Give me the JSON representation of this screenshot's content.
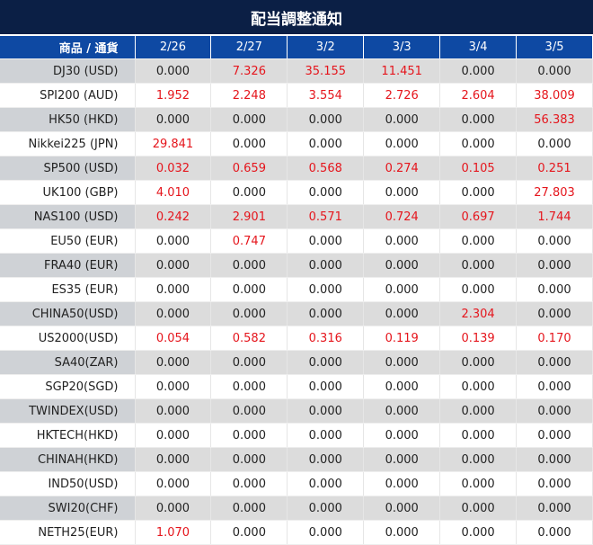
{
  "title": "配当調整通知",
  "header": {
    "product_label": "商品 / 通貨",
    "dates": [
      "2/26",
      "2/27",
      "3/2",
      "3/3",
      "3/4",
      "3/5"
    ]
  },
  "colors": {
    "title_bg": "#0b1f45",
    "header_bg": "#0e49a3",
    "positive_value": "#e5151c",
    "zero_value": "#222222"
  },
  "rows": [
    {
      "name": "DJ30 (USD)",
      "values": [
        "0.000",
        "7.326",
        "35.155",
        "11.451",
        "0.000",
        "0.000"
      ]
    },
    {
      "name": "SPI200 (AUD)",
      "values": [
        "1.952",
        "2.248",
        "3.554",
        "2.726",
        "2.604",
        "38.009"
      ]
    },
    {
      "name": "HK50 (HKD)",
      "values": [
        "0.000",
        "0.000",
        "0.000",
        "0.000",
        "0.000",
        "56.383"
      ]
    },
    {
      "name": "Nikkei225 (JPN)",
      "values": [
        "29.841",
        "0.000",
        "0.000",
        "0.000",
        "0.000",
        "0.000"
      ]
    },
    {
      "name": "SP500 (USD)",
      "values": [
        "0.032",
        "0.659",
        "0.568",
        "0.274",
        "0.105",
        "0.251"
      ]
    },
    {
      "name": "UK100 (GBP)",
      "values": [
        "4.010",
        "0.000",
        "0.000",
        "0.000",
        "0.000",
        "27.803"
      ]
    },
    {
      "name": "NAS100 (USD)",
      "values": [
        "0.242",
        "2.901",
        "0.571",
        "0.724",
        "0.697",
        "1.744"
      ]
    },
    {
      "name": "EU50 (EUR)",
      "values": [
        "0.000",
        "0.747",
        "0.000",
        "0.000",
        "0.000",
        "0.000"
      ]
    },
    {
      "name": "FRA40 (EUR)",
      "values": [
        "0.000",
        "0.000",
        "0.000",
        "0.000",
        "0.000",
        "0.000"
      ]
    },
    {
      "name": "ES35 (EUR)",
      "values": [
        "0.000",
        "0.000",
        "0.000",
        "0.000",
        "0.000",
        "0.000"
      ]
    },
    {
      "name": "CHINA50(USD)",
      "values": [
        "0.000",
        "0.000",
        "0.000",
        "0.000",
        "2.304",
        "0.000"
      ]
    },
    {
      "name": "US2000(USD)",
      "values": [
        "0.054",
        "0.582",
        "0.316",
        "0.119",
        "0.139",
        "0.170"
      ]
    },
    {
      "name": "SA40(ZAR)",
      "values": [
        "0.000",
        "0.000",
        "0.000",
        "0.000",
        "0.000",
        "0.000"
      ]
    },
    {
      "name": "SGP20(SGD)",
      "values": [
        "0.000",
        "0.000",
        "0.000",
        "0.000",
        "0.000",
        "0.000"
      ]
    },
    {
      "name": "TWINDEX(USD)",
      "values": [
        "0.000",
        "0.000",
        "0.000",
        "0.000",
        "0.000",
        "0.000"
      ]
    },
    {
      "name": "HKTECH(HKD)",
      "values": [
        "0.000",
        "0.000",
        "0.000",
        "0.000",
        "0.000",
        "0.000"
      ]
    },
    {
      "name": "CHINAH(HKD)",
      "values": [
        "0.000",
        "0.000",
        "0.000",
        "0.000",
        "0.000",
        "0.000"
      ]
    },
    {
      "name": "IND50(USD)",
      "values": [
        "0.000",
        "0.000",
        "0.000",
        "0.000",
        "0.000",
        "0.000"
      ]
    },
    {
      "name": "SWI20(CHF)",
      "values": [
        "0.000",
        "0.000",
        "0.000",
        "0.000",
        "0.000",
        "0.000"
      ]
    },
    {
      "name": "NETH25(EUR)",
      "values": [
        "1.070",
        "0.000",
        "0.000",
        "0.000",
        "0.000",
        "0.000"
      ]
    }
  ]
}
